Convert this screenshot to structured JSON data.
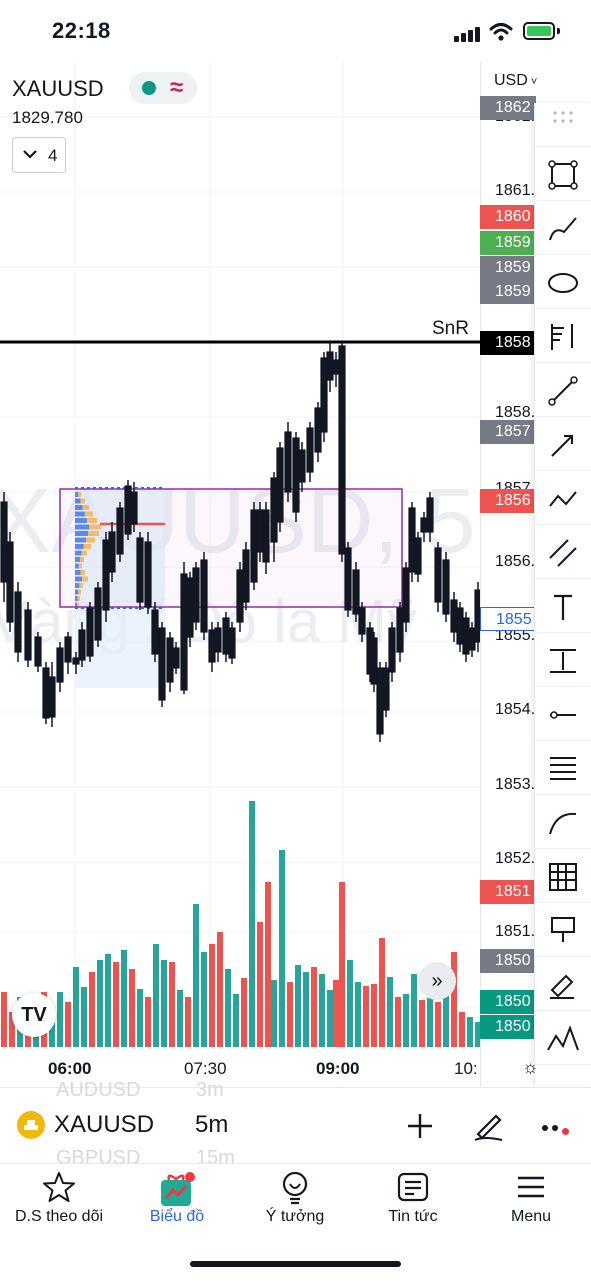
{
  "status_bar": {
    "time": "22:18"
  },
  "chart_header": {
    "symbol": "XAUUSD",
    "last_price": "1829.780",
    "indicators_count": "4",
    "currency": "USD"
  },
  "watermark": {
    "line1": "XAUUSD, 5",
    "line2": "Vàng / Đô la Mỹ"
  },
  "drawing_label": "SnR",
  "colors": {
    "up": "#26a69a",
    "down": "#ef5350",
    "candle": "#131722",
    "box": "#9c27b0",
    "accent": "#2962ff"
  },
  "price_axis": {
    "tick_labels": [
      "1862.",
      "1861.",
      "1858.",
      "1857.",
      "1856.",
      "1855.",
      "1854.",
      "1853.",
      "1852.",
      "1851."
    ],
    "tags": [
      {
        "text": "1862",
        "color": "#787b86"
      },
      {
        "text": "1860",
        "color": "#ef5350"
      },
      {
        "text": "1859",
        "color": "#4caf50"
      },
      {
        "text": "1859",
        "color": "#787b86"
      },
      {
        "text": "1859",
        "color": "#787b86"
      },
      {
        "text": "1858",
        "color": "#000000"
      },
      {
        "text": "1857",
        "color": "#787b86"
      },
      {
        "text": "1856",
        "color": "#ef5350"
      },
      {
        "text": "1855",
        "color": "#ffffff"
      },
      {
        "text": "1851",
        "color": "#ef5350"
      },
      {
        "text": "1850",
        "color": "#787b86"
      },
      {
        "text": "1850",
        "color": "#089981"
      },
      {
        "text": "1850",
        "color": "#089981"
      }
    ]
  },
  "time_axis": {
    "labels": [
      "06:00",
      "07:30",
      "09:00",
      "10:"
    ]
  },
  "toolbar": {
    "tools": [
      "drag-handle-icon",
      "rectangle-icon",
      "brush-icon",
      "ellipse-icon",
      "fib-tool-icon",
      "trend-line-icon",
      "arrow-line-icon",
      "path-icon",
      "parallel-line-icon",
      "text-icon",
      "price-range-icon",
      "horizontal-line-icon",
      "horizontal-lines-icon",
      "curve-icon",
      "grid-icon",
      "callout-icon",
      "highlighter-icon",
      "pattern-icon"
    ]
  },
  "symbol_bar": {
    "symbol": "XAUUSD",
    "timeframe": "5m",
    "ghost_above": {
      "symbol": "AUDUSD",
      "tf": "3m"
    },
    "ghost_below": {
      "symbol": "GBPUSD",
      "tf": "15m"
    }
  },
  "tabs": [
    {
      "label": "D.S theo dõi",
      "icon": "star-icon",
      "active": false
    },
    {
      "label": "Biểu đồ",
      "icon": "chart-gift-icon",
      "active": true
    },
    {
      "label": "Ý tưởng",
      "icon": "lightbulb-icon",
      "active": false
    },
    {
      "label": "Tin tức",
      "icon": "news-icon",
      "active": false
    },
    {
      "label": "Menu",
      "icon": "hamburger-icon",
      "active": false
    }
  ],
  "chart_data": {
    "type": "candlestick",
    "symbol": "XAUUSD",
    "interval": "5m",
    "x_labels": [
      "06:00",
      "07:30",
      "09:00",
      "10:"
    ],
    "y_range": [
      1853.5,
      1862.5
    ],
    "volume": "red/green volume bars below price",
    "drawings": [
      "horizontal line SnR",
      "purple rectangle",
      "volume profile"
    ]
  }
}
